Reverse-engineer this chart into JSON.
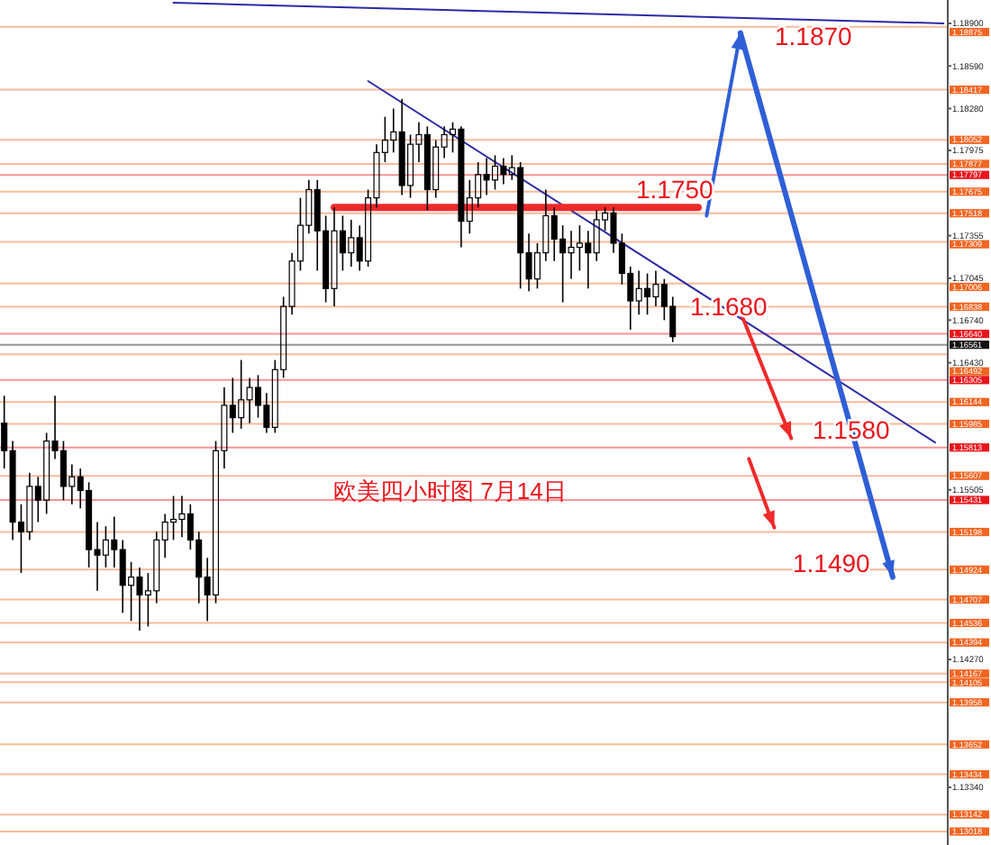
{
  "chart_data": {
    "type": "candlestick",
    "title": "欧美四小时图  7月14日",
    "categories": [
      null,
      null,
      null,
      null,
      null,
      null,
      null,
      null,
      null,
      null,
      null,
      null,
      null,
      null,
      null,
      null,
      null,
      null,
      null,
      null,
      null,
      null,
      null,
      null,
      null,
      null,
      null,
      null,
      null,
      null,
      null,
      null,
      null,
      null,
      null,
      null,
      null,
      null,
      null,
      null,
      null,
      null,
      null,
      null,
      null,
      null,
      null,
      null,
      null,
      null,
      null,
      null,
      null,
      null,
      null,
      null,
      null,
      null,
      null,
      null,
      null,
      null,
      null,
      null,
      null,
      null,
      null,
      null,
      null,
      null,
      null,
      null,
      null,
      null,
      null,
      null,
      null,
      null,
      null,
      null,
      null,
      null,
      null,
      null,
      null,
      null,
      null,
      null,
      null,
      null,
      null,
      null,
      null,
      null,
      null,
      null,
      null,
      null,
      null,
      null,
      null,
      null,
      null,
      null,
      null,
      null,
      null,
      null,
      null,
      null,
      null,
      null
    ],
    "ylim": [
      1.1292,
      1.1907
    ],
    "yticks": [
      {
        "value": 1.189,
        "label": "1.18900"
      },
      {
        "value": 1.1859,
        "label": "1.18590"
      },
      {
        "value": 1.1828,
        "label": "1.18280"
      },
      {
        "value": 1.17975,
        "label": "1.17975"
      },
      {
        "value": 1.17355,
        "label": "1.17355"
      },
      {
        "value": 1.17045,
        "label": "1.17045"
      },
      {
        "value": 1.1674,
        "label": "1.16740"
      },
      {
        "value": 1.1643,
        "label": "1.16430"
      },
      {
        "value": 1.15505,
        "label": "1.15505"
      },
      {
        "value": 1.1427,
        "label": "1.14270"
      },
      {
        "value": 1.1334,
        "label": "1.13340"
      }
    ],
    "tick_labels": "y",
    "series": [
      {
        "color": "#000000",
        "ohlc": [
          [
            1.1599,
            1.1619,
            1.1566,
            1.1579
          ],
          [
            1.1579,
            1.1586,
            1.1514,
            1.1527
          ],
          [
            1.1527,
            1.154,
            1.149,
            1.152
          ],
          [
            1.152,
            1.1563,
            1.1514,
            1.1553
          ],
          [
            1.1553,
            1.156,
            1.1527,
            1.1543
          ],
          [
            1.1543,
            1.1592,
            1.1533,
            1.1586
          ],
          [
            1.1586,
            1.1619,
            1.1573,
            1.1579
          ],
          [
            1.1579,
            1.1586,
            1.1543,
            1.1553
          ],
          [
            1.1553,
            1.1569,
            1.154,
            1.156
          ],
          [
            1.156,
            1.1566,
            1.1537,
            1.155
          ],
          [
            1.155,
            1.1556,
            1.1494,
            1.1507
          ],
          [
            1.1507,
            1.1527,
            1.1477,
            1.1503
          ],
          [
            1.1503,
            1.1524,
            1.1494,
            1.1514
          ],
          [
            1.1514,
            1.1531,
            1.1494,
            1.1507
          ],
          [
            1.1507,
            1.1514,
            1.1461,
            1.1481
          ],
          [
            1.1481,
            1.1498,
            1.1455,
            1.1487
          ],
          [
            1.1487,
            1.1494,
            1.1448,
            1.1474
          ],
          [
            1.1474,
            1.149,
            1.1451,
            1.1477
          ],
          [
            1.1477,
            1.152,
            1.1468,
            1.1514
          ],
          [
            1.1514,
            1.1533,
            1.1501,
            1.1527
          ],
          [
            1.1527,
            1.1546,
            1.1514,
            1.1529
          ],
          [
            1.1529,
            1.1546,
            1.1516,
            1.1533
          ],
          [
            1.1533,
            1.154,
            1.1507,
            1.1514
          ],
          [
            1.1514,
            1.152,
            1.1468,
            1.1487
          ],
          [
            1.1487,
            1.1501,
            1.1455,
            1.1474
          ],
          [
            1.1474,
            1.1586,
            1.1468,
            1.1579
          ],
          [
            1.1579,
            1.1625,
            1.1566,
            1.1612
          ],
          [
            1.1612,
            1.1632,
            1.1592,
            1.1603
          ],
          [
            1.1603,
            1.1645,
            1.1595,
            1.1616
          ],
          [
            1.1616,
            1.1632,
            1.1599,
            1.1625
          ],
          [
            1.1625,
            1.1634,
            1.1603,
            1.1612
          ],
          [
            1.1612,
            1.1621,
            1.1592,
            1.1596
          ],
          [
            1.1596,
            1.1645,
            1.1592,
            1.1638
          ],
          [
            1.1638,
            1.1691,
            1.1632,
            1.1684
          ],
          [
            1.1684,
            1.1723,
            1.1678,
            1.1717
          ],
          [
            1.1717,
            1.1763,
            1.171,
            1.1743
          ],
          [
            1.1743,
            1.1776,
            1.1737,
            1.1769
          ],
          [
            1.1769,
            1.1776,
            1.171,
            1.1739
          ],
          [
            1.1739,
            1.175,
            1.1687,
            1.1697
          ],
          [
            1.1697,
            1.1756,
            1.1684,
            1.1739
          ],
          [
            1.1739,
            1.175,
            1.171,
            1.1723
          ],
          [
            1.1723,
            1.1747,
            1.1713,
            1.1734
          ],
          [
            1.1734,
            1.1743,
            1.171,
            1.1717
          ],
          [
            1.1717,
            1.1769,
            1.1713,
            1.1763
          ],
          [
            1.1763,
            1.1802,
            1.1756,
            1.1796
          ],
          [
            1.1796,
            1.1822,
            1.1789,
            1.1805
          ],
          [
            1.1805,
            1.1828,
            1.1796,
            1.1811
          ],
          [
            1.1811,
            1.1835,
            1.1765,
            1.1772
          ],
          [
            1.1772,
            1.1809,
            1.1763,
            1.1802
          ],
          [
            1.1802,
            1.1818,
            1.1789,
            1.1809
          ],
          [
            1.1809,
            1.1815,
            1.1754,
            1.1769
          ],
          [
            1.1769,
            1.1805,
            1.1763,
            1.18
          ],
          [
            1.18,
            1.1815,
            1.1792,
            1.1809
          ],
          [
            1.1809,
            1.1818,
            1.1796,
            1.1813
          ],
          [
            1.1813,
            1.1815,
            1.1727,
            1.1746
          ],
          [
            1.1746,
            1.1776,
            1.1737,
            1.1763
          ],
          [
            1.1763,
            1.1789,
            1.1756,
            1.178
          ],
          [
            1.178,
            1.1792,
            1.1765,
            1.1776
          ],
          [
            1.1776,
            1.1794,
            1.1769,
            1.1786
          ],
          [
            1.1786,
            1.1792,
            1.1773,
            1.178
          ],
          [
            1.178,
            1.1794,
            1.1776,
            1.1785
          ],
          [
            1.1785,
            1.1789,
            1.1697,
            1.1723
          ],
          [
            1.1723,
            1.1737,
            1.1695,
            1.1704
          ],
          [
            1.1704,
            1.173,
            1.1697,
            1.1723
          ],
          [
            1.1723,
            1.1769,
            1.1717,
            1.175
          ],
          [
            1.175,
            1.1756,
            1.1717,
            1.1733
          ],
          [
            1.1733,
            1.1743,
            1.1687,
            1.1723
          ],
          [
            1.1723,
            1.1739,
            1.1704,
            1.1727
          ],
          [
            1.1727,
            1.1743,
            1.171,
            1.173
          ],
          [
            1.173,
            1.1739,
            1.1697,
            1.1723
          ],
          [
            1.1723,
            1.1754,
            1.1717,
            1.1747
          ],
          [
            1.1747,
            1.1756,
            1.1739,
            1.1752
          ],
          [
            1.1752,
            1.1756,
            1.1723,
            1.173
          ],
          [
            1.173,
            1.1737,
            1.17,
            1.1708
          ],
          [
            1.1708,
            1.1713,
            1.1667,
            1.1688
          ],
          [
            1.1688,
            1.171,
            1.1678,
            1.1697
          ],
          [
            1.1697,
            1.1708,
            1.1678,
            1.1691
          ],
          [
            1.1691,
            1.171,
            1.1684,
            1.17
          ],
          [
            1.17,
            1.1704,
            1.1674,
            1.1684
          ],
          [
            1.1684,
            1.1691,
            1.1658,
            1.1662
          ],
          null,
          null,
          null,
          null,
          null,
          null,
          null,
          null,
          null,
          null,
          null,
          null,
          null,
          null,
          null,
          null,
          null,
          null,
          null,
          null,
          null,
          null,
          null,
          null,
          null,
          null,
          null,
          null,
          null,
          null,
          null,
          null
        ]
      },
      {
        "type": "line",
        "color": "#2b2ba6",
        "values": [
          null,
          null,
          null,
          null,
          null,
          null,
          null,
          null,
          null,
          null,
          null,
          null,
          null,
          null,
          null,
          null,
          null,
          null,
          null,
          null,
          null,
          null,
          null,
          null,
          null,
          null,
          null,
          null,
          null,
          null,
          null,
          null,
          null,
          null,
          null,
          null,
          null,
          null,
          null,
          null,
          null,
          null,
          null,
          1.1848,
          null,
          null,
          null,
          null,
          null,
          null,
          null,
          null,
          null,
          null,
          null,
          null,
          null,
          null,
          null,
          null,
          null,
          null,
          null,
          null,
          null,
          null,
          null,
          null,
          null,
          null,
          null,
          null,
          null,
          null,
          null,
          null,
          null,
          null,
          null,
          null,
          null,
          null,
          null,
          null,
          null,
          null,
          null,
          null,
          null,
          null,
          null,
          null,
          null,
          null,
          null,
          null,
          null,
          null,
          null,
          null,
          null,
          null,
          null,
          null,
          null,
          null,
          null,
          null,
          null,
          null,
          1.1585,
          null
        ]
      },
      {
        "type": "line",
        "color": "#2b2ba6",
        "values": [
          null,
          null,
          null,
          null,
          null,
          null,
          null,
          null,
          null,
          null,
          null,
          null,
          null,
          null,
          null,
          null,
          null,
          null,
          null,
          null,
          1.1905,
          null,
          null,
          null,
          null,
          null,
          null,
          null,
          null,
          null,
          null,
          null,
          null,
          null,
          null,
          null,
          null,
          null,
          null,
          null,
          null,
          null,
          null,
          null,
          null,
          null,
          null,
          null,
          null,
          null,
          null,
          null,
          null,
          null,
          null,
          null,
          null,
          null,
          null,
          null,
          null,
          null,
          null,
          null,
          null,
          null,
          null,
          null,
          null,
          null,
          null,
          null,
          null,
          null,
          null,
          null,
          null,
          null,
          null,
          null,
          null,
          null,
          null,
          null,
          null,
          null,
          null,
          null,
          null,
          null,
          null,
          null,
          null,
          null,
          null,
          null,
          null,
          null,
          null,
          null,
          null,
          null,
          null,
          null,
          null,
          null,
          null,
          null,
          null,
          null,
          null,
          1.189
        ]
      },
      {
        "type": "line",
        "color": "#ee2a2a",
        "values": [
          null,
          null,
          null,
          null,
          null,
          null,
          null,
          null,
          null,
          null,
          null,
          null,
          null,
          null,
          null,
          null,
          null,
          null,
          null,
          null,
          null,
          null,
          null,
          null,
          null,
          null,
          null,
          null,
          null,
          null,
          null,
          null,
          null,
          null,
          null,
          null,
          null,
          null,
          null,
          1.1756,
          null,
          null,
          null,
          null,
          null,
          null,
          null,
          null,
          null,
          null,
          null,
          null,
          null,
          null,
          null,
          null,
          null,
          null,
          null,
          null,
          null,
          null,
          null,
          null,
          null,
          null,
          null,
          null,
          null,
          null,
          null,
          null,
          null,
          null,
          null,
          null,
          null,
          null,
          null,
          null,
          null,
          null,
          1.1756,
          null,
          null,
          null,
          null,
          null,
          null,
          null,
          null,
          null,
          null,
          null,
          null,
          null,
          null,
          null,
          null,
          null,
          null,
          null,
          null,
          null,
          null,
          null,
          null,
          null,
          null,
          null,
          null,
          null
        ]
      },
      {
        "type": "line",
        "color": "#2f5fd6",
        "values": [
          null,
          null,
          null,
          null,
          null,
          null,
          null,
          null,
          null,
          null,
          null,
          null,
          null,
          null,
          null,
          null,
          null,
          null,
          null,
          null,
          null,
          null,
          null,
          null,
          null,
          null,
          null,
          null,
          null,
          null,
          null,
          null,
          null,
          null,
          null,
          null,
          null,
          null,
          null,
          null,
          null,
          null,
          null,
          null,
          null,
          null,
          null,
          null,
          null,
          null,
          null,
          null,
          null,
          null,
          null,
          null,
          null,
          null,
          null,
          null,
          null,
          null,
          null,
          null,
          null,
          null,
          null,
          null,
          null,
          null,
          null,
          null,
          null,
          null,
          null,
          null,
          null,
          null,
          null,
          null,
          null,
          null,
          null,
          1.175,
          null,
          null,
          null,
          1.1883,
          null,
          null,
          null,
          null,
          null,
          null,
          null,
          null,
          null,
          null,
          null,
          null,
          null,
          null,
          null,
          null,
          null,
          null,
          null,
          null,
          null,
          null,
          null,
          null
        ]
      },
      {
        "type": "line",
        "color": "#2f5fd6",
        "values": [
          null,
          null,
          null,
          null,
          null,
          null,
          null,
          null,
          null,
          null,
          null,
          null,
          null,
          null,
          null,
          null,
          null,
          null,
          null,
          null,
          null,
          null,
          null,
          null,
          null,
          null,
          null,
          null,
          null,
          null,
          null,
          null,
          null,
          null,
          null,
          null,
          null,
          null,
          null,
          null,
          null,
          null,
          null,
          null,
          null,
          null,
          null,
          null,
          null,
          null,
          null,
          null,
          null,
          null,
          null,
          null,
          null,
          null,
          null,
          null,
          null,
          null,
          null,
          null,
          null,
          null,
          null,
          null,
          null,
          null,
          null,
          null,
          null,
          null,
          null,
          null,
          null,
          null,
          null,
          null,
          null,
          null,
          null,
          null,
          null,
          null,
          null,
          1.1883,
          null,
          null,
          null,
          null,
          null,
          null,
          null,
          null,
          null,
          null,
          null,
          null,
          null,
          null,
          null,
          null,
          null,
          1.1487,
          null,
          null,
          null,
          null,
          null,
          null
        ]
      },
      {
        "type": "line",
        "color": "#ee2a2a",
        "values": [
          null,
          null,
          null,
          null,
          null,
          null,
          null,
          null,
          null,
          null,
          null,
          null,
          null,
          null,
          null,
          null,
          null,
          null,
          null,
          null,
          null,
          null,
          null,
          null,
          null,
          null,
          null,
          null,
          null,
          null,
          null,
          null,
          null,
          null,
          null,
          null,
          null,
          null,
          null,
          null,
          null,
          null,
          null,
          null,
          null,
          null,
          null,
          null,
          null,
          null,
          null,
          null,
          null,
          null,
          null,
          null,
          null,
          null,
          null,
          null,
          null,
          null,
          null,
          null,
          null,
          null,
          null,
          null,
          null,
          null,
          null,
          null,
          null,
          null,
          null,
          null,
          null,
          null,
          null,
          null,
          null,
          null,
          null,
          null,
          null,
          null,
          null,
          1.168,
          null,
          null,
          null,
          null,
          null,
          1.1588,
          null,
          null,
          null,
          null,
          null,
          null,
          null,
          null,
          null,
          null,
          null,
          null,
          null,
          null,
          null,
          null,
          null,
          null
        ]
      },
      {
        "type": "line",
        "color": "#ee2a2a",
        "values": [
          null,
          null,
          null,
          null,
          null,
          null,
          null,
          null,
          null,
          null,
          null,
          null,
          null,
          null,
          null,
          null,
          null,
          null,
          null,
          null,
          null,
          null,
          null,
          null,
          null,
          null,
          null,
          null,
          null,
          null,
          null,
          null,
          null,
          null,
          null,
          null,
          null,
          null,
          null,
          null,
          null,
          null,
          null,
          null,
          null,
          null,
          null,
          null,
          null,
          null,
          null,
          null,
          null,
          null,
          null,
          null,
          null,
          null,
          null,
          null,
          null,
          null,
          null,
          null,
          null,
          null,
          null,
          null,
          null,
          null,
          null,
          null,
          null,
          null,
          null,
          null,
          null,
          null,
          null,
          null,
          null,
          null,
          null,
          null,
          null,
          null,
          null,
          null,
          1.1573,
          null,
          null,
          1.1523,
          null,
          null,
          null,
          null,
          null,
          null,
          null,
          null,
          null,
          null,
          null,
          null,
          null,
          null,
          null,
          null,
          null,
          null,
          null,
          null
        ]
      }
    ],
    "ref_lines": [
      {
        "axis": "y",
        "value": 1.18875,
        "label": "1.18875",
        "color": "#f26522"
      },
      {
        "axis": "y",
        "value": 1.18417,
        "label": "1.18417",
        "color": "#f26522"
      },
      {
        "axis": "y",
        "value": 1.18052,
        "label": "1.18052",
        "color": "#f26522"
      },
      {
        "axis": "y",
        "value": 1.17877,
        "label": "1.17877",
        "color": "#f26522"
      },
      {
        "axis": "y",
        "value": 1.17797,
        "label": "1.17797",
        "color": "#e8141b"
      },
      {
        "axis": "y",
        "value": 1.17675,
        "label": "1.17675",
        "color": "#f26522"
      },
      {
        "axis": "y",
        "value": 1.17518,
        "label": "1.17518",
        "color": "#f26522"
      },
      {
        "axis": "y",
        "value": 1.17309,
        "label": "1.17309",
        "color": "#f26522"
      },
      {
        "axis": "y",
        "value": 1.17006,
        "label": "1.17006",
        "color": "#f26522"
      },
      {
        "axis": "y",
        "value": 1.16838,
        "label": "1.16838",
        "color": "#f26522"
      },
      {
        "axis": "y",
        "value": 1.1664,
        "label": "1.16640",
        "color": "#e8141b"
      },
      {
        "axis": "y",
        "value": 1.16561,
        "label": "1.16561",
        "color": "#111111"
      },
      {
        "axis": "y",
        "value": 1.16492,
        "label": "1.16492",
        "color": "#f26522"
      },
      {
        "axis": "y",
        "value": 1.16305,
        "label": "1.16305",
        "color": "#e8141b"
      },
      {
        "axis": "y",
        "value": 1.16144,
        "label": "1.16144",
        "color": "#f26522"
      },
      {
        "axis": "y",
        "value": 1.15985,
        "label": "1.15985",
        "color": "#f26522"
      },
      {
        "axis": "y",
        "value": 1.15813,
        "label": "1.15813",
        "color": "#e8141b"
      },
      {
        "axis": "y",
        "value": 1.15607,
        "label": "1.15607",
        "color": "#f26522"
      },
      {
        "axis": "y",
        "value": 1.15431,
        "label": "1.15431",
        "color": "#e8141b"
      },
      {
        "axis": "y",
        "value": 1.15198,
        "label": "1.15198",
        "color": "#f26522"
      },
      {
        "axis": "y",
        "value": 1.14924,
        "label": "1.14924",
        "color": "#f26522"
      },
      {
        "axis": "y",
        "value": 1.14707,
        "label": "1.14707",
        "color": "#f26522"
      },
      {
        "axis": "y",
        "value": 1.14536,
        "label": "1.14536",
        "color": "#f26522"
      },
      {
        "axis": "y",
        "value": 1.14394,
        "label": "1.14394",
        "color": "#f26522"
      },
      {
        "axis": "y",
        "value": 1.14167,
        "label": "1.14167",
        "color": "#f26522"
      },
      {
        "axis": "y",
        "value": 1.14105,
        "label": "1.14105",
        "color": "#f26522"
      },
      {
        "axis": "y",
        "value": 1.13958,
        "label": "1.13958",
        "color": "#f26522"
      },
      {
        "axis": "y",
        "value": 1.13652,
        "label": "1.13652",
        "color": "#f26522"
      },
      {
        "axis": "y",
        "value": 1.13434,
        "label": "1.13434",
        "color": "#f26522"
      },
      {
        "axis": "y",
        "value": 1.13142,
        "label": "1.13142",
        "color": "#f26522"
      },
      {
        "axis": "y",
        "value": 1.13018,
        "label": "1.13018",
        "color": "#f26522"
      }
    ],
    "annotations": [
      {
        "text": "1.1870",
        "y": 1.1881
      },
      {
        "text": "1.1750",
        "y": 1.1769
      },
      {
        "text": "1.1680",
        "y": 1.1684
      },
      {
        "text": "1.1580",
        "y": 1.1594
      },
      {
        "text": "1.1490",
        "y": 1.1497
      }
    ],
    "grid": false
  }
}
